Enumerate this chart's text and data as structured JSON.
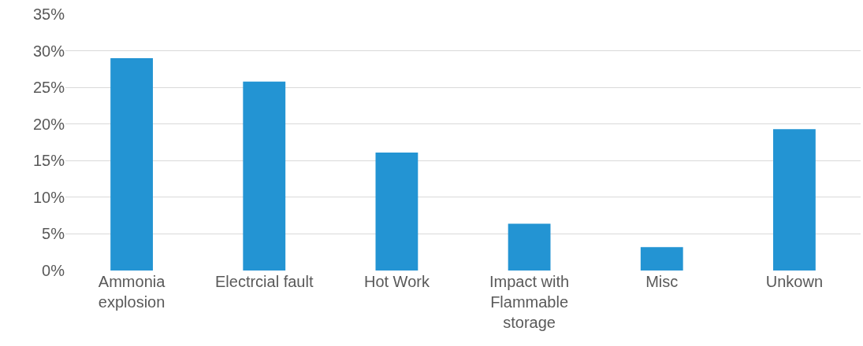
{
  "chart_data": {
    "type": "bar",
    "categories": [
      "Ammonia explosion",
      "Electrcial fault",
      "Hot Work",
      "Impact with Flammable storage",
      "Misc",
      "Unkown"
    ],
    "values": [
      29.0,
      25.8,
      16.1,
      6.4,
      3.2,
      19.3
    ],
    "color": "#2394d3",
    "ylim": [
      0,
      35
    ],
    "yticks": [
      {
        "value": 0,
        "label": "0%"
      },
      {
        "value": 5,
        "label": "5%"
      },
      {
        "value": 10,
        "label": "10%"
      },
      {
        "value": 15,
        "label": "15%"
      },
      {
        "value": 20,
        "label": "20%"
      },
      {
        "value": 25,
        "label": "25%"
      },
      {
        "value": 30,
        "label": "30%"
      },
      {
        "value": 35,
        "label": "35%"
      }
    ],
    "grid": "y"
  }
}
